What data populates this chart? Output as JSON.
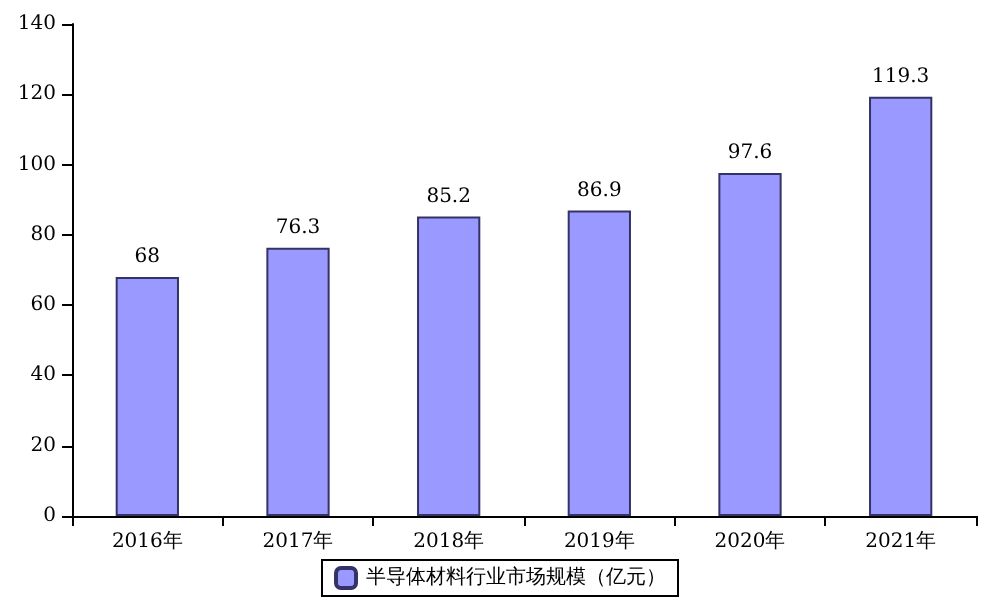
{
  "chart_data": {
    "type": "bar",
    "categories": [
      "2016年",
      "2017年",
      "2018年",
      "2019年",
      "2020年",
      "2021年"
    ],
    "series": [
      {
        "name": "半导体材料行业市场规模（亿元）",
        "color": "#9999ff",
        "values": [
          68,
          76.3,
          85.2,
          86.9,
          97.6,
          119.3
        ]
      }
    ],
    "ylim": [
      0,
      140
    ],
    "yticks": [
      0,
      20,
      40,
      60,
      80,
      100,
      120,
      140
    ],
    "grid": false,
    "legend": "bottom",
    "data_labels": true
  }
}
